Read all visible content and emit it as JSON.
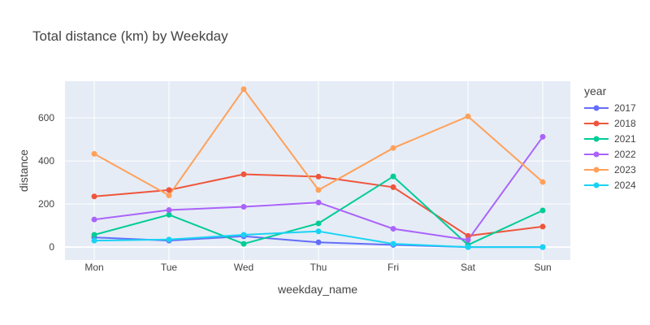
{
  "chart_data": {
    "type": "line",
    "title": "Total distance (km) by Weekday",
    "xlabel": "weekday_name",
    "ylabel": "distance",
    "categories": [
      "Mon",
      "Tue",
      "Wed",
      "Thu",
      "Fri",
      "Sat",
      "Sun"
    ],
    "ylim": [
      -60,
      770
    ],
    "yticks": [
      0,
      200,
      400,
      600
    ],
    "grid": true,
    "legend_title": "year",
    "legend_position": "right",
    "series": [
      {
        "name": "2017",
        "color": "#636efa",
        "values": [
          45,
          30,
          50,
          22,
          10,
          0,
          0
        ]
      },
      {
        "name": "2018",
        "color": "#ef553b",
        "values": [
          235,
          265,
          338,
          327,
          278,
          52,
          95
        ]
      },
      {
        "name": "2021",
        "color": "#00cc96",
        "values": [
          57,
          150,
          15,
          110,
          328,
          10,
          170
        ]
      },
      {
        "name": "2022",
        "color": "#ab63fa",
        "values": [
          128,
          172,
          187,
          207,
          85,
          33,
          512
        ]
      },
      {
        "name": "2023",
        "color": "#ffa15a",
        "values": [
          433,
          240,
          733,
          265,
          460,
          607,
          302
        ]
      },
      {
        "name": "2024",
        "color": "#19d3f3",
        "values": [
          30,
          35,
          57,
          73,
          15,
          0,
          0
        ]
      }
    ]
  }
}
